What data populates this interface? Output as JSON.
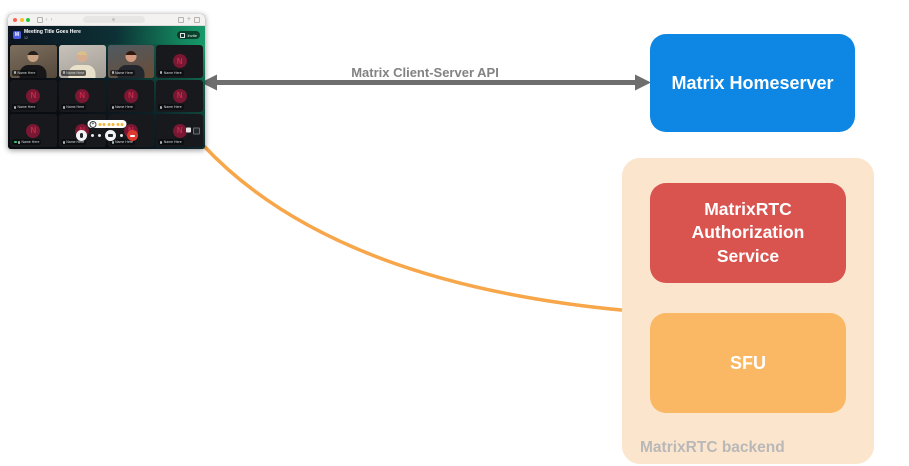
{
  "diagram": {
    "arrow": {
      "label": "Matrix Client-Server API",
      "color": "#6e6e6e",
      "label_color": "#828282"
    },
    "homeserver": {
      "label": "Matrix Homeserver",
      "color": "#0d87e3",
      "text_color": "#ffffff"
    },
    "backend": {
      "label": "MatrixRTC backend",
      "label_color": "#b8b8b8",
      "container_color": "#fce5cd",
      "auth_service": {
        "label": "MatrixRTC Authorization Service",
        "lines": [
          "MatrixRTC",
          "Authorization",
          "Service"
        ],
        "color": "#d9534f",
        "text_color": "#ffffff"
      },
      "sfu": {
        "label": "SFU",
        "color": "#fab764",
        "text_color": "#ffffff"
      }
    },
    "client_link": {
      "color": "#f7a64a"
    }
  },
  "call_app": {
    "browser": {
      "traffic_lights": [
        "#ff5f57",
        "#febc2e",
        "#28c840"
      ]
    },
    "header": {
      "avatar_letter": "M",
      "title": "Meeting Title Goes Here",
      "participants": "12",
      "badge_label": "Invite"
    },
    "avatar_letter": "N",
    "avatar_circle_color": "#7a1732",
    "avatar_letter_color": "#c42a4a",
    "tiles": [
      {
        "type": "video",
        "name": "Name Here",
        "border": "#c7772c",
        "wall": [
          "#7d6f5e",
          "#55493c"
        ],
        "hair": "#241d18",
        "skin": "#c9a284",
        "shirt": "#17171a"
      },
      {
        "type": "video",
        "name": "Name Here",
        "border": "#8d9298",
        "wall": [
          "#c7c2bb",
          "#a39d94"
        ],
        "hair": "#d8bf8c",
        "skin": "#d8ac8f",
        "shirt": "#e9e1ca"
      },
      {
        "type": "video",
        "name": "Name Here",
        "border": "#2fbf8e",
        "wall": [
          "#4e5a62",
          "#6b4d36"
        ],
        "hair": "#30180f",
        "skin": "#d49a80",
        "shirt": "#23262c"
      },
      {
        "type": "avatar",
        "name": "Name Here"
      },
      {
        "type": "avatar",
        "name": "Name Here"
      },
      {
        "type": "avatar",
        "name": "Name Here"
      },
      {
        "type": "avatar",
        "name": "Name Here"
      },
      {
        "type": "avatar",
        "name": "Name Here"
      },
      {
        "type": "avatar",
        "name": "Name Here",
        "presence": true
      },
      {
        "type": "avatar",
        "name": "Name Here"
      },
      {
        "type": "avatar",
        "name": "Name Here"
      },
      {
        "type": "avatar",
        "name": "Name Here",
        "side_icons": true
      }
    ],
    "controls": {
      "buttons": [
        "mic",
        "dot",
        "dot",
        "cam",
        "dot",
        "hang"
      ],
      "hangup_color": "#e0392e",
      "add_reaction_glyph": "+",
      "reaction_dots": 6,
      "reaction_dot_color": "#f2b63c"
    }
  }
}
